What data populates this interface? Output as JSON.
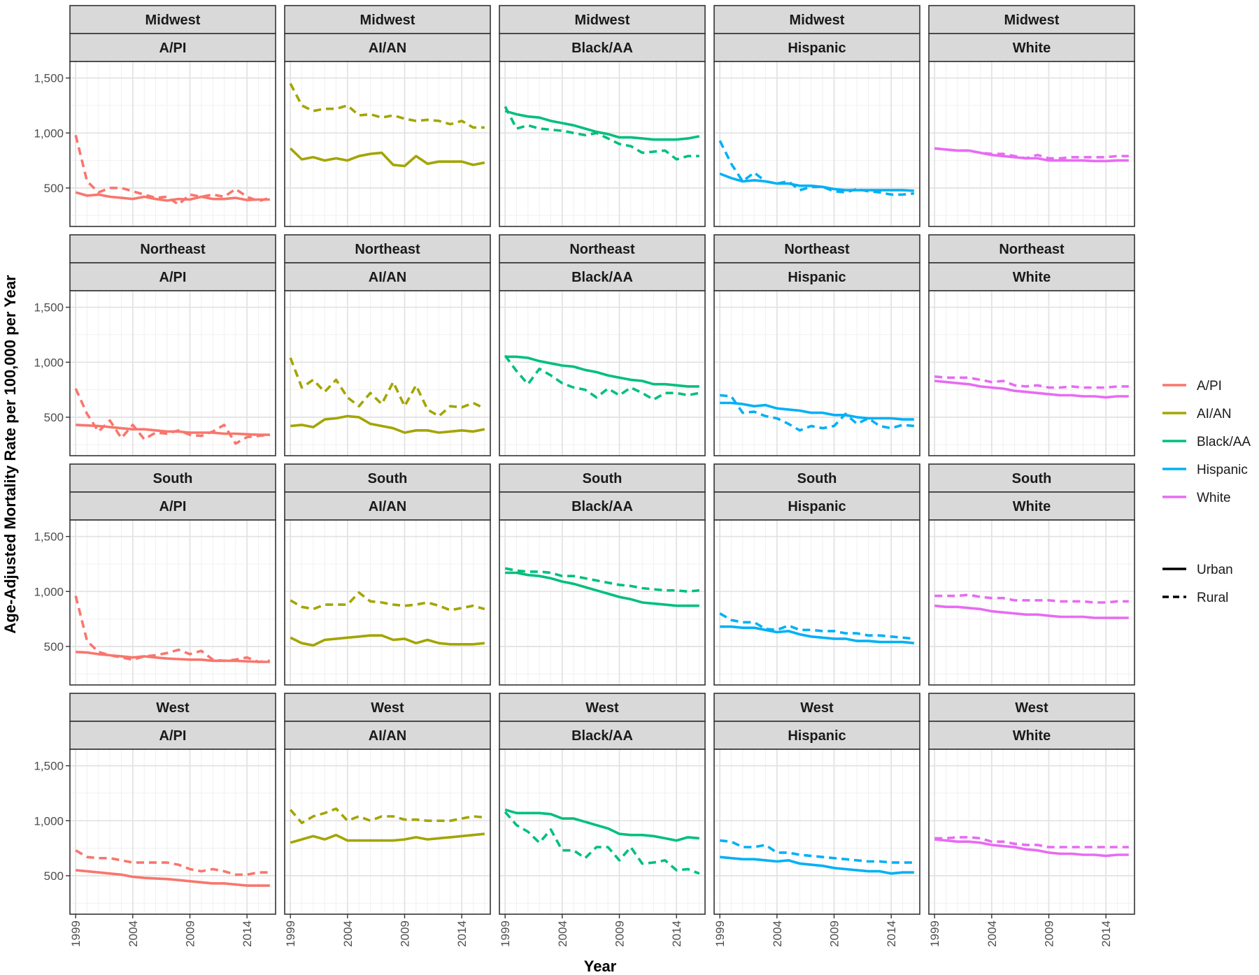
{
  "chart_data": {
    "type": "line",
    "title": "",
    "xlabel": "Year",
    "ylabel": "Age-Adjusted Mortality Rate per 100,000 per Year",
    "ylim": [
      150,
      1650
    ],
    "xlim": [
      1998.5,
      2016.5
    ],
    "x_ticks": [
      1999,
      2004,
      2009,
      2014
    ],
    "y_ticks": [
      500,
      1000,
      1500
    ],
    "y_tick_labels": [
      "500",
      "1,000",
      "1,500"
    ],
    "years": [
      1999,
      2000,
      2001,
      2002,
      2003,
      2004,
      2005,
      2006,
      2007,
      2008,
      2009,
      2010,
      2011,
      2012,
      2013,
      2014,
      2015,
      2016
    ],
    "regions": [
      "Midwest",
      "Northeast",
      "South",
      "West"
    ],
    "races": [
      "A/PI",
      "AI/AN",
      "Black/AA",
      "Hispanic",
      "White"
    ],
    "colors": {
      "A/PI": "#F8766D",
      "AI/AN": "#A3A500",
      "Black/AA": "#00BF7D",
      "Hispanic": "#00B0F6",
      "White": "#E76BF3"
    },
    "legend": {
      "race_entries": [
        "A/PI",
        "AI/AN",
        "Black/AA",
        "Hispanic",
        "White"
      ],
      "type_entries": [
        "Urban",
        "Rural"
      ]
    },
    "panels": [
      {
        "region": "Midwest",
        "race": "A/PI",
        "urban": [
          460,
          430,
          440,
          420,
          410,
          400,
          420,
          400,
          385,
          400,
          395,
          420,
          400,
          400,
          410,
          390,
          395,
          395
        ],
        "rural": [
          980,
          560,
          460,
          500,
          500,
          470,
          440,
          410,
          420,
          350,
          440,
          420,
          440,
          420,
          490,
          420,
          380,
          410
        ]
      },
      {
        "region": "Midwest",
        "race": "AI/AN",
        "urban": [
          860,
          760,
          780,
          750,
          770,
          750,
          790,
          810,
          820,
          710,
          700,
          790,
          720,
          740,
          740,
          740,
          710,
          730
        ],
        "rural": [
          1450,
          1250,
          1200,
          1220,
          1220,
          1250,
          1160,
          1170,
          1140,
          1160,
          1130,
          1110,
          1120,
          1110,
          1080,
          1110,
          1050,
          1050
        ]
      },
      {
        "region": "Midwest",
        "race": "Black/AA",
        "urban": [
          1200,
          1170,
          1150,
          1140,
          1110,
          1090,
          1070,
          1040,
          1010,
          990,
          960,
          960,
          950,
          940,
          940,
          940,
          950,
          970
        ],
        "rural": [
          1240,
          1040,
          1070,
          1040,
          1030,
          1020,
          1000,
          980,
          1000,
          950,
          900,
          880,
          820,
          830,
          840,
          760,
          790,
          790
        ]
      },
      {
        "region": "Midwest",
        "race": "Hispanic",
        "urban": [
          630,
          590,
          560,
          570,
          560,
          540,
          540,
          520,
          520,
          510,
          490,
          480,
          480,
          480,
          480,
          480,
          480,
          475
        ],
        "rural": [
          930,
          720,
          560,
          640,
          560,
          540,
          560,
          480,
          510,
          510,
          470,
          460,
          490,
          470,
          460,
          440,
          440,
          450
        ]
      },
      {
        "region": "Midwest",
        "race": "White",
        "urban": [
          860,
          850,
          840,
          840,
          820,
          800,
          790,
          780,
          770,
          770,
          750,
          750,
          750,
          750,
          745,
          745,
          750,
          750
        ],
        "rural": [
          860,
          850,
          840,
          840,
          820,
          810,
          810,
          790,
          770,
          800,
          770,
          770,
          780,
          780,
          780,
          780,
          790,
          790
        ]
      },
      {
        "region": "Northeast",
        "race": "A/PI",
        "urban": [
          430,
          425,
          420,
          410,
          400,
          390,
          390,
          380,
          370,
          370,
          360,
          360,
          360,
          350,
          350,
          345,
          340,
          340
        ],
        "rural": [
          760,
          530,
          370,
          470,
          310,
          430,
          300,
          360,
          350,
          380,
          340,
          330,
          370,
          430,
          260,
          320,
          330,
          340
        ]
      },
      {
        "region": "Northeast",
        "race": "AI/AN",
        "urban": [
          420,
          430,
          410,
          480,
          490,
          510,
          500,
          440,
          420,
          400,
          360,
          380,
          380,
          360,
          370,
          380,
          370,
          390
        ],
        "rural": [
          1040,
          770,
          840,
          730,
          840,
          680,
          600,
          720,
          620,
          820,
          600,
          790,
          570,
          510,
          600,
          590,
          630,
          580
        ]
      },
      {
        "region": "Northeast",
        "race": "Black/AA",
        "urban": [
          1050,
          1050,
          1040,
          1010,
          990,
          970,
          960,
          930,
          910,
          880,
          860,
          840,
          830,
          800,
          800,
          790,
          780,
          780
        ],
        "rural": [
          1060,
          920,
          800,
          940,
          880,
          810,
          770,
          750,
          680,
          760,
          700,
          770,
          720,
          660,
          720,
          720,
          700,
          720
        ]
      },
      {
        "region": "Northeast",
        "race": "Hispanic",
        "urban": [
          630,
          630,
          620,
          600,
          610,
          580,
          570,
          560,
          540,
          540,
          520,
          520,
          500,
          490,
          490,
          490,
          480,
          480
        ],
        "rural": [
          700,
          690,
          540,
          550,
          510,
          490,
          440,
          380,
          420,
          400,
          420,
          530,
          440,
          490,
          420,
          400,
          430,
          420
        ]
      },
      {
        "region": "Northeast",
        "race": "White",
        "urban": [
          830,
          820,
          810,
          800,
          780,
          770,
          760,
          740,
          730,
          720,
          710,
          700,
          700,
          690,
          690,
          680,
          690,
          690
        ],
        "rural": [
          870,
          860,
          860,
          860,
          840,
          820,
          830,
          790,
          780,
          790,
          770,
          770,
          780,
          770,
          770,
          770,
          780,
          780
        ]
      },
      {
        "region": "South",
        "race": "A/PI",
        "urban": [
          450,
          445,
          430,
          420,
          410,
          400,
          410,
          400,
          390,
          385,
          380,
          380,
          370,
          370,
          370,
          365,
          360,
          360
        ],
        "rural": [
          960,
          550,
          450,
          420,
          400,
          380,
          410,
          420,
          440,
          470,
          430,
          460,
          380,
          370,
          380,
          400,
          360,
          370
        ]
      },
      {
        "region": "South",
        "race": "AI/AN",
        "urban": [
          580,
          530,
          510,
          560,
          570,
          580,
          590,
          600,
          600,
          560,
          570,
          530,
          560,
          530,
          520,
          520,
          520,
          530
        ],
        "rural": [
          920,
          860,
          840,
          880,
          880,
          880,
          990,
          910,
          900,
          880,
          870,
          880,
          900,
          870,
          830,
          850,
          870,
          840
        ]
      },
      {
        "region": "South",
        "race": "Black/AA",
        "urban": [
          1170,
          1170,
          1150,
          1140,
          1120,
          1090,
          1070,
          1040,
          1010,
          980,
          950,
          930,
          900,
          890,
          880,
          870,
          870,
          870
        ],
        "rural": [
          1210,
          1190,
          1180,
          1180,
          1170,
          1140,
          1140,
          1120,
          1100,
          1080,
          1060,
          1050,
          1030,
          1020,
          1010,
          1010,
          1000,
          1010
        ]
      },
      {
        "region": "South",
        "race": "Hispanic",
        "urban": [
          680,
          680,
          670,
          670,
          650,
          630,
          640,
          610,
          590,
          580,
          570,
          570,
          550,
          550,
          540,
          540,
          540,
          530
        ],
        "rural": [
          800,
          740,
          720,
          720,
          660,
          650,
          690,
          650,
          650,
          640,
          640,
          620,
          620,
          600,
          600,
          590,
          580,
          570
        ]
      },
      {
        "region": "South",
        "race": "White",
        "urban": [
          870,
          860,
          860,
          850,
          840,
          820,
          810,
          800,
          790,
          790,
          780,
          770,
          770,
          770,
          760,
          760,
          760,
          760
        ],
        "rural": [
          960,
          960,
          960,
          970,
          950,
          940,
          940,
          920,
          920,
          920,
          920,
          910,
          910,
          910,
          900,
          900,
          910,
          910
        ]
      },
      {
        "region": "West",
        "race": "A/PI",
        "urban": [
          550,
          540,
          530,
          520,
          510,
          490,
          480,
          475,
          470,
          460,
          450,
          440,
          430,
          430,
          420,
          410,
          410,
          410
        ],
        "rural": [
          730,
          670,
          660,
          660,
          640,
          620,
          620,
          620,
          620,
          600,
          560,
          540,
          560,
          540,
          510,
          510,
          530,
          530
        ]
      },
      {
        "region": "West",
        "race": "AI/AN",
        "urban": [
          800,
          830,
          860,
          830,
          870,
          820,
          820,
          820,
          820,
          820,
          830,
          850,
          830,
          840,
          850,
          860,
          870,
          880
        ],
        "rural": [
          1100,
          980,
          1040,
          1070,
          1110,
          1000,
          1040,
          1000,
          1040,
          1040,
          1010,
          1010,
          1000,
          1000,
          1000,
          1020,
          1040,
          1030
        ]
      },
      {
        "region": "West",
        "race": "Black/AA",
        "urban": [
          1100,
          1070,
          1070,
          1070,
          1060,
          1020,
          1020,
          990,
          960,
          930,
          880,
          870,
          870,
          860,
          840,
          820,
          850,
          840
        ],
        "rural": [
          1080,
          960,
          900,
          800,
          920,
          730,
          730,
          660,
          760,
          760,
          640,
          760,
          610,
          620,
          640,
          550,
          560,
          520
        ]
      },
      {
        "region": "West",
        "race": "Hispanic",
        "urban": [
          670,
          660,
          650,
          650,
          640,
          630,
          640,
          610,
          600,
          590,
          570,
          560,
          550,
          540,
          540,
          520,
          530,
          530
        ],
        "rural": [
          820,
          810,
          760,
          760,
          780,
          710,
          710,
          690,
          680,
          670,
          660,
          650,
          640,
          630,
          630,
          620,
          620,
          620
        ]
      },
      {
        "region": "West",
        "race": "White",
        "urban": [
          830,
          820,
          810,
          810,
          800,
          780,
          770,
          760,
          740,
          730,
          710,
          700,
          700,
          690,
          690,
          680,
          690,
          690
        ],
        "rural": [
          840,
          840,
          850,
          850,
          840,
          810,
          810,
          790,
          780,
          780,
          760,
          760,
          760,
          760,
          760,
          760,
          760,
          760
        ]
      }
    ]
  }
}
